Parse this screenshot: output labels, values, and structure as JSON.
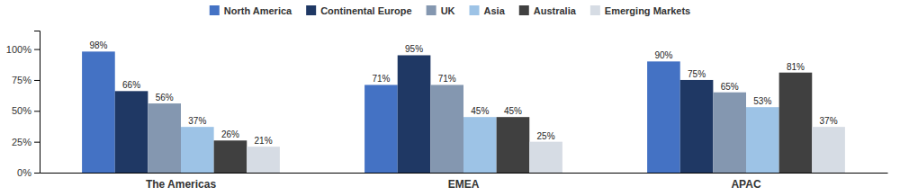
{
  "chart_data": {
    "type": "bar",
    "categories": [
      "The Americas",
      "EMEA",
      "APAC"
    ],
    "series": [
      {
        "name": "North America",
        "color": "#4472C4",
        "values": [
          98,
          71,
          90
        ],
        "value_labels": [
          "98%",
          "71%",
          "90%"
        ]
      },
      {
        "name": "Continental Europe",
        "color": "#1F3864",
        "values": [
          66,
          95,
          75
        ],
        "value_labels": [
          "66%",
          "95%",
          "75%"
        ]
      },
      {
        "name": "UK",
        "color": "#8497B0",
        "values": [
          56,
          71,
          65
        ],
        "value_labels": [
          "56%",
          "71%",
          "65%"
        ]
      },
      {
        "name": "Asia",
        "color": "#9DC3E6",
        "values": [
          37,
          45,
          53
        ],
        "value_labels": [
          "37%",
          "45%",
          "53%"
        ]
      },
      {
        "name": "Australia",
        "color": "#404040",
        "values": [
          26,
          45,
          81
        ],
        "value_labels": [
          "26%",
          "45%",
          "81%"
        ]
      },
      {
        "name": "Emerging Markets",
        "color": "#D6DCE4",
        "values": [
          21,
          25,
          37
        ],
        "value_labels": [
          "21%",
          "25%",
          "37%"
        ]
      }
    ],
    "ylim": [
      0,
      115
    ],
    "yticks": [
      {
        "value": 0,
        "label": "0%"
      },
      {
        "value": 25,
        "label": "25%"
      },
      {
        "value": 50,
        "label": "50%"
      },
      {
        "value": 75,
        "label": "75%"
      },
      {
        "value": 100,
        "label": "100%"
      }
    ],
    "grid": false,
    "legend": "top",
    "data_labels": true
  }
}
